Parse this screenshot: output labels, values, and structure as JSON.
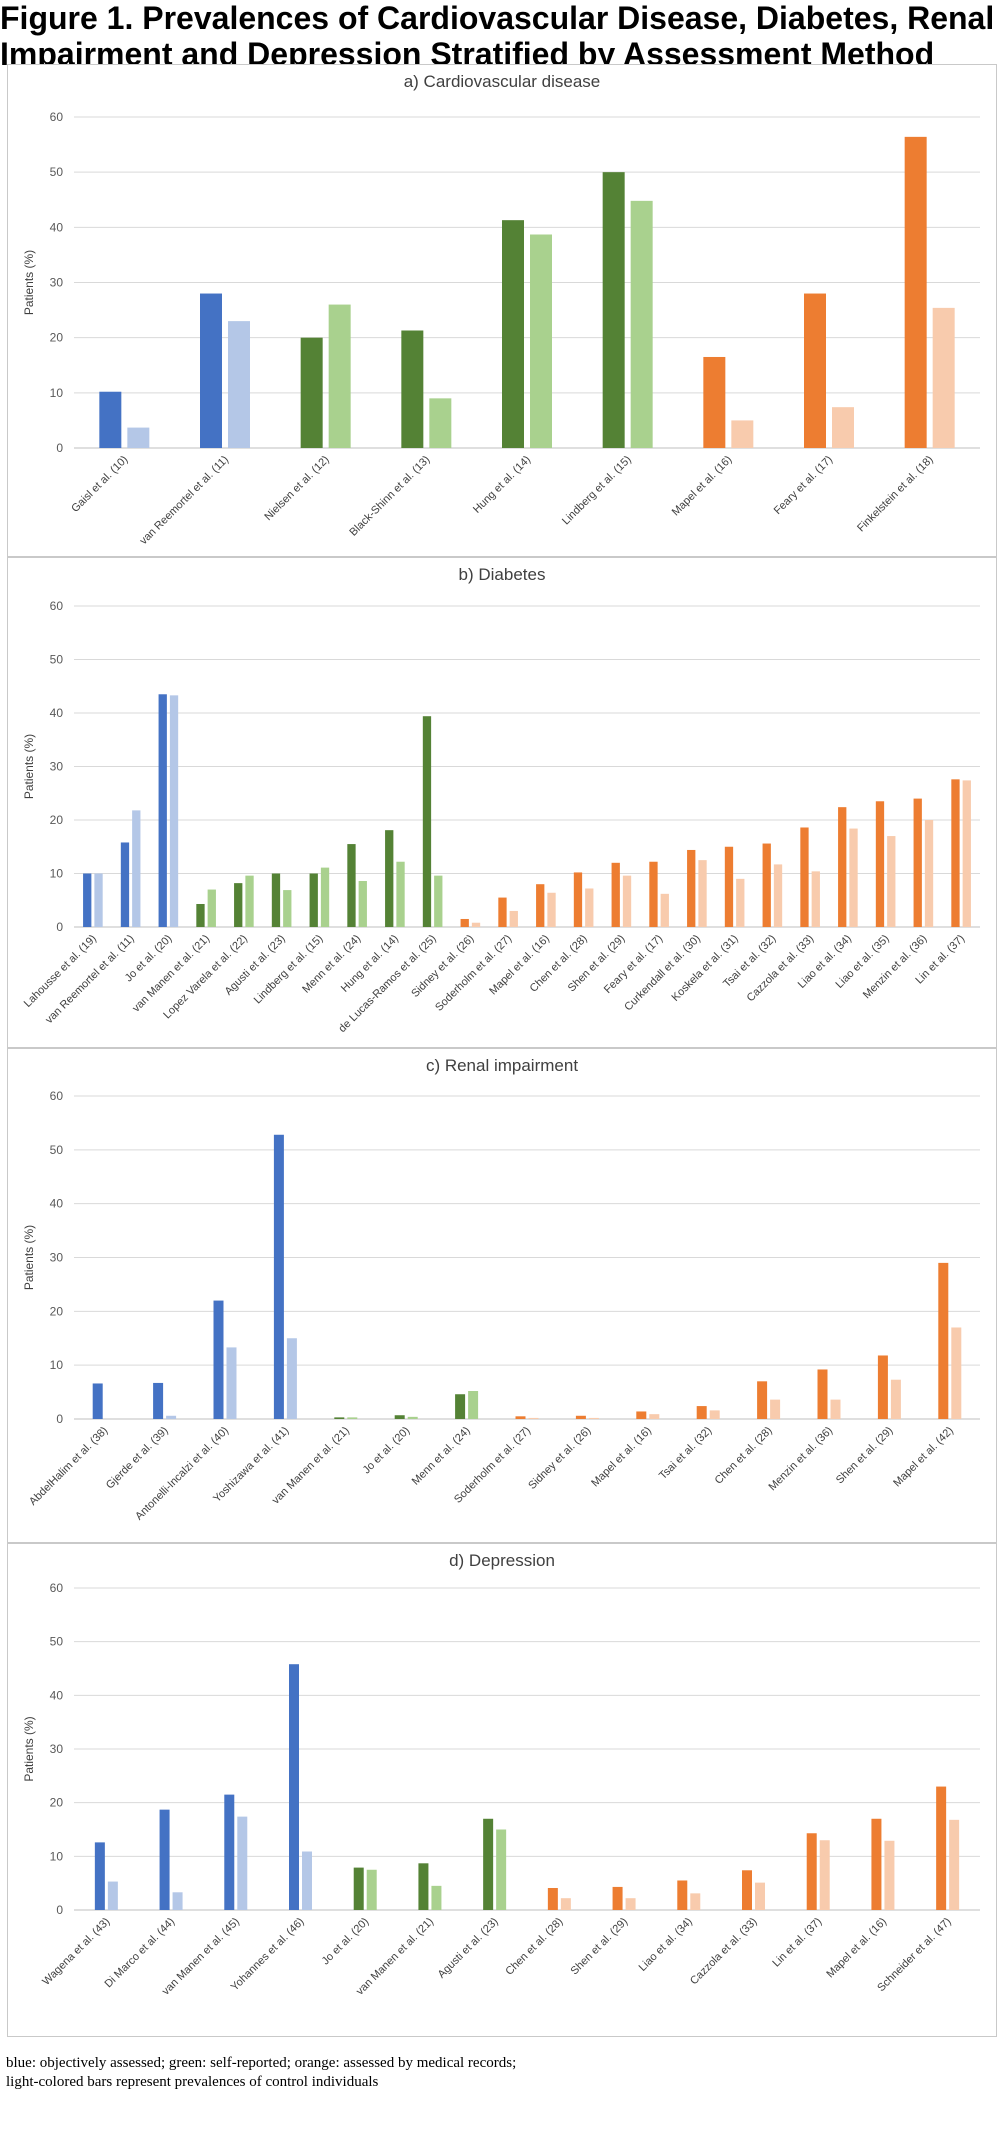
{
  "figure": {
    "title_line1": "Figure 1. Prevalences of Cardiovascular Disease, Diabetes, Renal",
    "title_line2": "Impairment and Depression Stratified by Assessment Method"
  },
  "caption": {
    "line1": "blue: objectively assessed; green: self-reported; orange: assessed by medical records;",
    "line2": "light-colored bars represent prevalences of control individuals"
  },
  "colors": {
    "blue": "#4472C4",
    "blue_light": "#B4C7E7",
    "green": "#548235",
    "green_light": "#A9D18E",
    "orange": "#ED7D31",
    "orange_light": "#F8CBAD"
  },
  "chart_data": [
    {
      "type": "bar",
      "title": "a) Cardiovascular disease",
      "ylabel": "Patients (%)",
      "ylim": [
        0,
        60
      ],
      "yticks": [
        0,
        10,
        20,
        30,
        40,
        50,
        60
      ],
      "grid": true,
      "series": [
        {
          "values": [
            10.2,
            28,
            20,
            21.3,
            41.3,
            50,
            16.5,
            28,
            56.4
          ]
        },
        {
          "values": [
            3.7,
            23,
            26,
            9,
            38.7,
            44.8,
            5,
            7.4,
            25.4
          ]
        }
      ],
      "categories": [
        "Gaisl et al. (10)",
        "van Reemortel et al. (11)",
        "Nielsen et al. (12)",
        "Black-Shinn et al. (13)",
        "Hung et al. (14)",
        "Lindberg et al. (15)",
        "Mapel et al. (16)",
        "Feary et al. (17)",
        "Finkelstein et al. (18)"
      ],
      "method": [
        "blue",
        "blue",
        "green",
        "green",
        "green",
        "green",
        "orange",
        "orange",
        "orange"
      ]
    },
    {
      "type": "bar",
      "title": "b) Diabetes",
      "ylabel": "Patients (%)",
      "ylim": [
        0,
        60
      ],
      "yticks": [
        0,
        10,
        20,
        30,
        40,
        50,
        60
      ],
      "grid": true,
      "series": [
        {
          "values": [
            10,
            15.8,
            43.5,
            4.3,
            8.2,
            10,
            10,
            15.5,
            18.1,
            39.4,
            1.5,
            5.5,
            8,
            10.2,
            12,
            12.2,
            14.4,
            15,
            15.6,
            18.6,
            22.4,
            23.5,
            24,
            27.6
          ]
        },
        {
          "values": [
            10,
            21.8,
            43.3,
            7,
            9.6,
            6.9,
            11.1,
            8.6,
            12.2,
            9.6,
            0.8,
            3,
            6.4,
            7.2,
            9.6,
            6.2,
            12.5,
            9,
            11.7,
            10.4,
            18.4,
            17,
            20,
            27.4
          ]
        }
      ],
      "categories": [
        "Lahousse et al. (19)",
        "van Reemortel et al. (11)",
        "Jo et al. (20)",
        "van Manen et al. (21)",
        "Lopez Varela et al. (22)",
        "Agusti et al. (23)",
        "Lindberg et al. (15)",
        "Menn et al. (24)",
        "Hung et al. (14)",
        "de Lucas-Ramos et al. (25)",
        "Sidney et al. (26)",
        "Soderholm et al. (27)",
        "Mapel et al. (16)",
        "Chen et al. (28)",
        "Shen et al. (29)",
        "Feary et al. (17)",
        "Curkendall et al. (30)",
        "Koskela et al. (31)",
        "Tsai et al. (32)",
        "Cazzola et al. (33)",
        "Liao et al. (34)",
        "Liao et al. (35)",
        "Menzin et al. (36)",
        "Lin et al. (37)"
      ],
      "method": [
        "blue",
        "blue",
        "blue",
        "green",
        "green",
        "green",
        "green",
        "green",
        "green",
        "green",
        "orange",
        "orange",
        "orange",
        "orange",
        "orange",
        "orange",
        "orange",
        "orange",
        "orange",
        "orange",
        "orange",
        "orange",
        "orange",
        "orange"
      ]
    },
    {
      "type": "bar",
      "title": "c) Renal impairment",
      "ylabel": "Patients (%)",
      "ylim": [
        0,
        60
      ],
      "yticks": [
        0,
        10,
        20,
        30,
        40,
        50,
        60
      ],
      "grid": true,
      "series": [
        {
          "values": [
            6.6,
            6.7,
            22,
            52.8,
            0.3,
            0.7,
            4.6,
            0.5,
            0.6,
            1.4,
            2.4,
            7,
            9.2,
            11.8,
            29
          ]
        },
        {
          "values": [
            0,
            0.6,
            13.3,
            15,
            0.3,
            0.4,
            5.2,
            0.2,
            0.2,
            0.9,
            1.6,
            3.6,
            3.6,
            7.3,
            17
          ]
        }
      ],
      "categories": [
        "AbdelHalim et al. (38)",
        "Gjerde et al. (39)",
        "Antonelli-Incalzi et al. (40)",
        "Yoshizawa et al. (41)",
        "van Manen et al. (21)",
        "Jo et al. (20)",
        "Menn et al. (24)",
        "Soderholm et al. (27)",
        "Sidney et al. (26)",
        "Mapel et al. (16)",
        "Tsai et al. (32)",
        "Chen et al. (28)",
        "Menzin et al. (36)",
        "Shen et al. (29)",
        "Mapel et al. (42)"
      ],
      "method": [
        "blue",
        "blue",
        "blue",
        "blue",
        "green",
        "green",
        "green",
        "orange",
        "orange",
        "orange",
        "orange",
        "orange",
        "orange",
        "orange",
        "orange"
      ]
    },
    {
      "type": "bar",
      "title": "d) Depression",
      "ylabel": "Patients (%)",
      "ylim": [
        0,
        60
      ],
      "yticks": [
        0,
        10,
        20,
        30,
        40,
        50,
        60
      ],
      "grid": true,
      "series": [
        {
          "values": [
            12.6,
            18.7,
            21.5,
            45.8,
            7.9,
            8.7,
            17,
            4.1,
            4.3,
            5.5,
            7.4,
            14.3,
            17,
            23
          ]
        },
        {
          "values": [
            5.3,
            3.3,
            17.4,
            10.9,
            7.5,
            4.5,
            15,
            2.2,
            2.2,
            3.1,
            5.1,
            13,
            12.9,
            16.8
          ]
        }
      ],
      "categories": [
        "Wagena et al. (43)",
        "Di Marco et al. (44)",
        "van Manen et al. (45)",
        "Yohannes et al. (46)",
        "Jo et al. (20)",
        "van Manen et al. (21)",
        "Agusti et al. (23)",
        "Chen et al. (28)",
        "Shen et al. (29)",
        "Liao et al. (34)",
        "Cazzola et al. (33)",
        "Lin et al. (37)",
        "Mapel et al. (16)",
        "Schneider et al. (47)"
      ],
      "method": [
        "blue",
        "blue",
        "blue",
        "blue",
        "green",
        "green",
        "green",
        "orange",
        "orange",
        "orange",
        "orange",
        "orange",
        "orange",
        "orange"
      ]
    }
  ]
}
